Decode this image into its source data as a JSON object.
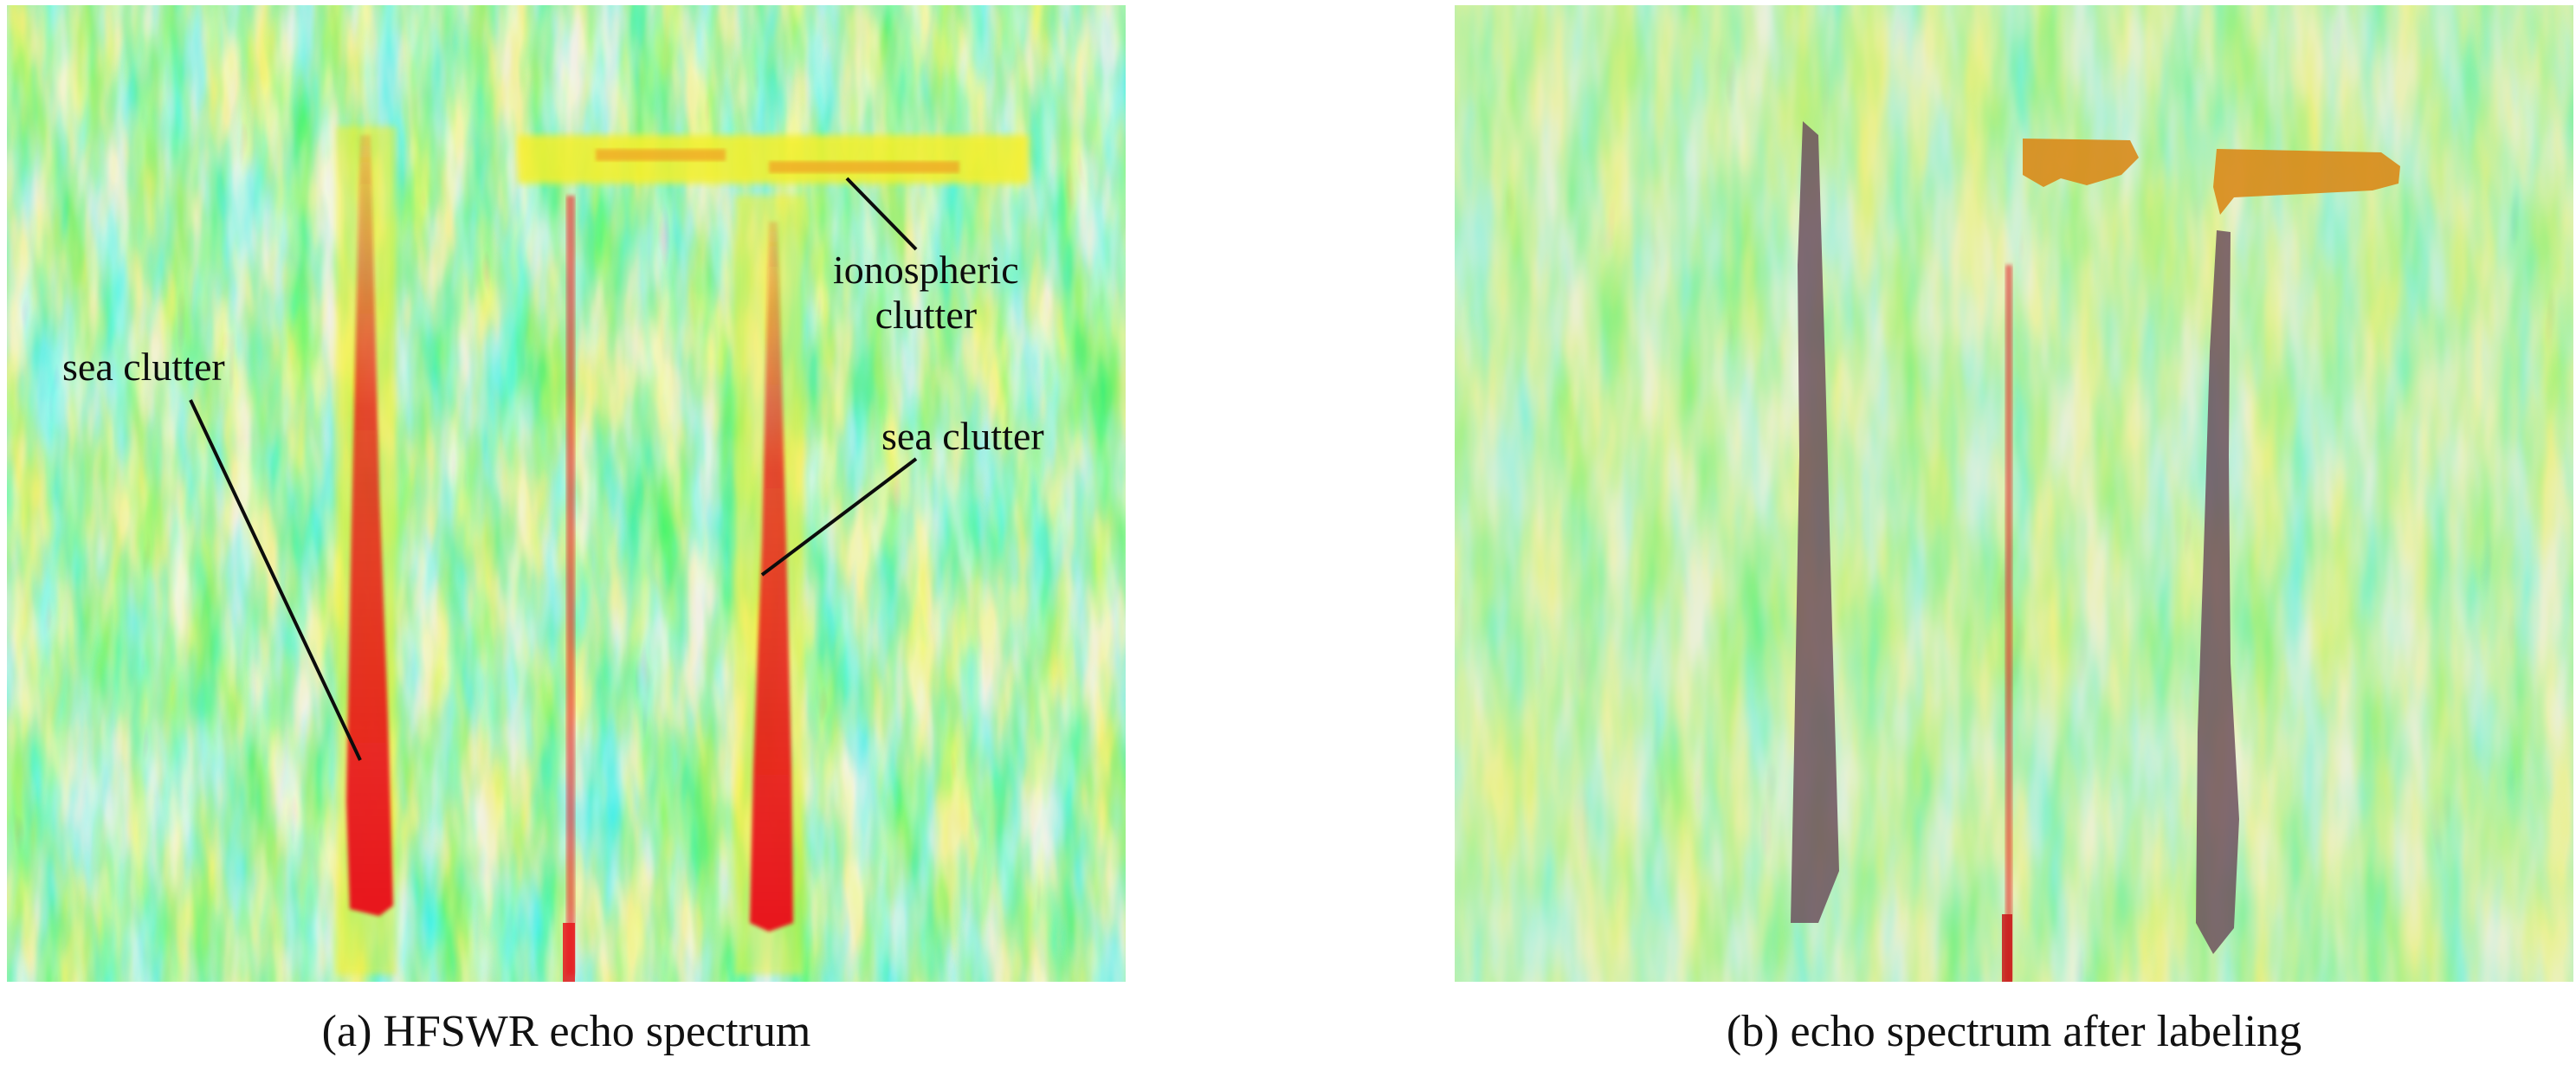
{
  "panel_a": {
    "caption": "(a) HFSWR echo spectrum",
    "annotations": {
      "sea_clutter_left": "sea clutter",
      "ionospheric_line1": "ionospheric",
      "ionospheric_line2": "clutter",
      "sea_clutter_right": "sea clutter"
    }
  },
  "panel_b": {
    "caption": "(b) echo spectrum after labeling"
  },
  "colors": {
    "background_green": "#6fe07a",
    "cyan": "#33e0e8",
    "yellow": "#f4f02a",
    "red": "#e8161b",
    "blue": "#1a3fb0",
    "label_purple": "#6a4a5a",
    "label_orange": "#d98a1a"
  }
}
